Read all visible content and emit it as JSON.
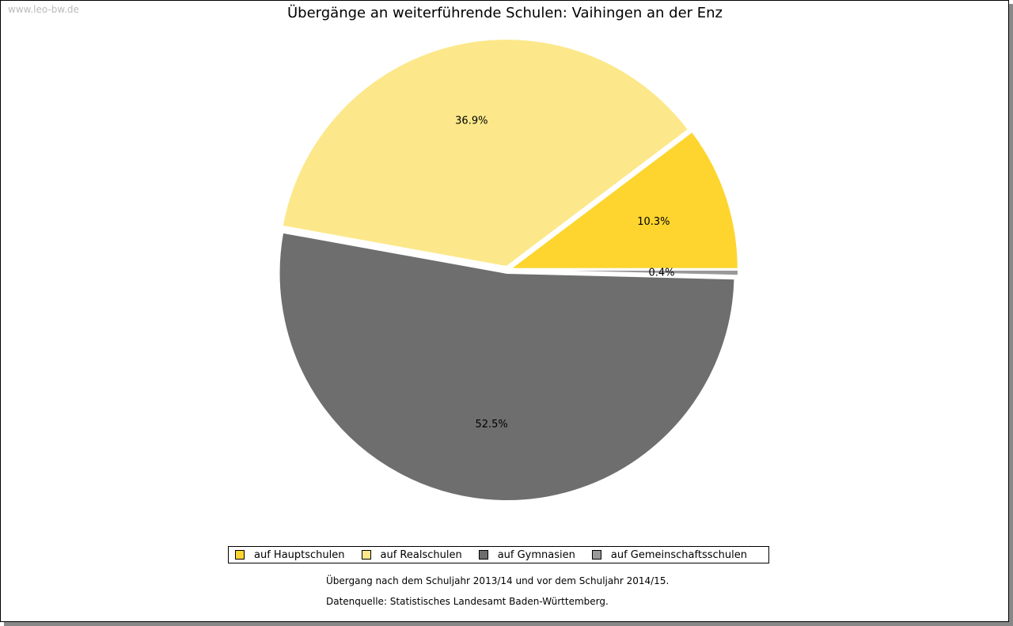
{
  "watermark": "www.leo-bw.de",
  "chart_data": {
    "type": "pie",
    "title": "Übergänge an weiterführende Schulen: Vaihingen an der Enz",
    "slices": [
      {
        "label": "auf Hauptschulen",
        "value": 10.3,
        "display": "10.3%",
        "color": "#FDD52E"
      },
      {
        "label": "auf Realschulen",
        "value": 36.9,
        "display": "36.9%",
        "color": "#FCE88A"
      },
      {
        "label": "auf Gymnasien",
        "value": 52.5,
        "display": "52.5%",
        "color": "#6E6E6E"
      },
      {
        "label": "auf Gemeinschaftsschulen",
        "value": 0.4,
        "display": "0.4%",
        "color": "#999999"
      }
    ],
    "legend_position": "bottom",
    "notes": [
      "Übergang nach dem Schuljahr 2013/14 und vor dem Schuljahr 2014/15.",
      "Datenquelle: Statistisches Landesamt Baden-Württemberg."
    ]
  }
}
